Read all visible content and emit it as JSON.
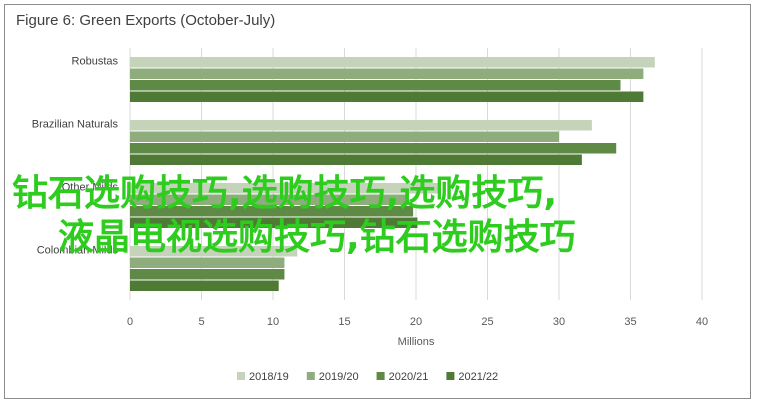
{
  "chart_data": {
    "type": "bar",
    "orientation": "horizontal",
    "title": "Figure 6: Green Exports (October-July)",
    "xlabel": "Millions",
    "ylabel": "",
    "xlim": [
      0,
      40
    ],
    "xticks": [
      0,
      5,
      10,
      15,
      20,
      25,
      30,
      35,
      40
    ],
    "grid": true,
    "legend_position": "bottom",
    "categories": [
      "Robustas",
      "Brazilian Naturals",
      "Other Milds",
      "Colombian Milds"
    ],
    "series": [
      {
        "name": "2018/19",
        "color": "#c5d3bb",
        "values": [
          36.7,
          32.3,
          21.7,
          11.7
        ]
      },
      {
        "name": "2019/20",
        "color": "#8fad7c",
        "values": [
          35.9,
          30.0,
          19.3,
          10.8
        ]
      },
      {
        "name": "2020/21",
        "color": "#5e8a45",
        "values": [
          34.3,
          34.0,
          19.8,
          10.8
        ]
      },
      {
        "name": "2021/22",
        "color": "#4f7a36",
        "values": [
          35.9,
          31.6,
          20.1,
          10.4
        ]
      }
    ]
  },
  "overlay": {
    "line1": "钻石选购技巧,选购技巧,选购技巧,",
    "line2": "液晶电视选购技巧,钻石选购技巧"
  }
}
